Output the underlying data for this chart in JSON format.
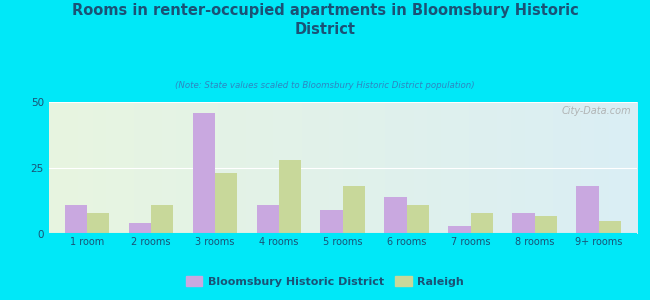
{
  "categories": [
    "1 room",
    "2 rooms",
    "3 rooms",
    "4 rooms",
    "5 rooms",
    "6 rooms",
    "7 rooms",
    "8 rooms",
    "9+ rooms"
  ],
  "bloomsbury": [
    11,
    4,
    46,
    11,
    9,
    14,
    3,
    8,
    18
  ],
  "raleigh": [
    8,
    11,
    23,
    28,
    18,
    11,
    8,
    7,
    5
  ],
  "bloomsbury_color": "#c9a8e0",
  "raleigh_color": "#c8d89a",
  "title": "Rooms in renter-occupied apartments in Bloomsbury Historic\nDistrict",
  "subtitle": "(Note: State values scaled to Bloomsbury Historic District population)",
  "legend_bloomsbury": "Bloomsbury Historic District",
  "legend_raleigh": "Raleigh",
  "ylim": [
    0,
    50
  ],
  "yticks": [
    0,
    25,
    50
  ],
  "bg_outer": "#00e8f8",
  "watermark": "City-Data.com",
  "bar_width": 0.35,
  "title_color": "#1a5276",
  "subtitle_color": "#2e86c1",
  "tick_color": "#1a5276"
}
